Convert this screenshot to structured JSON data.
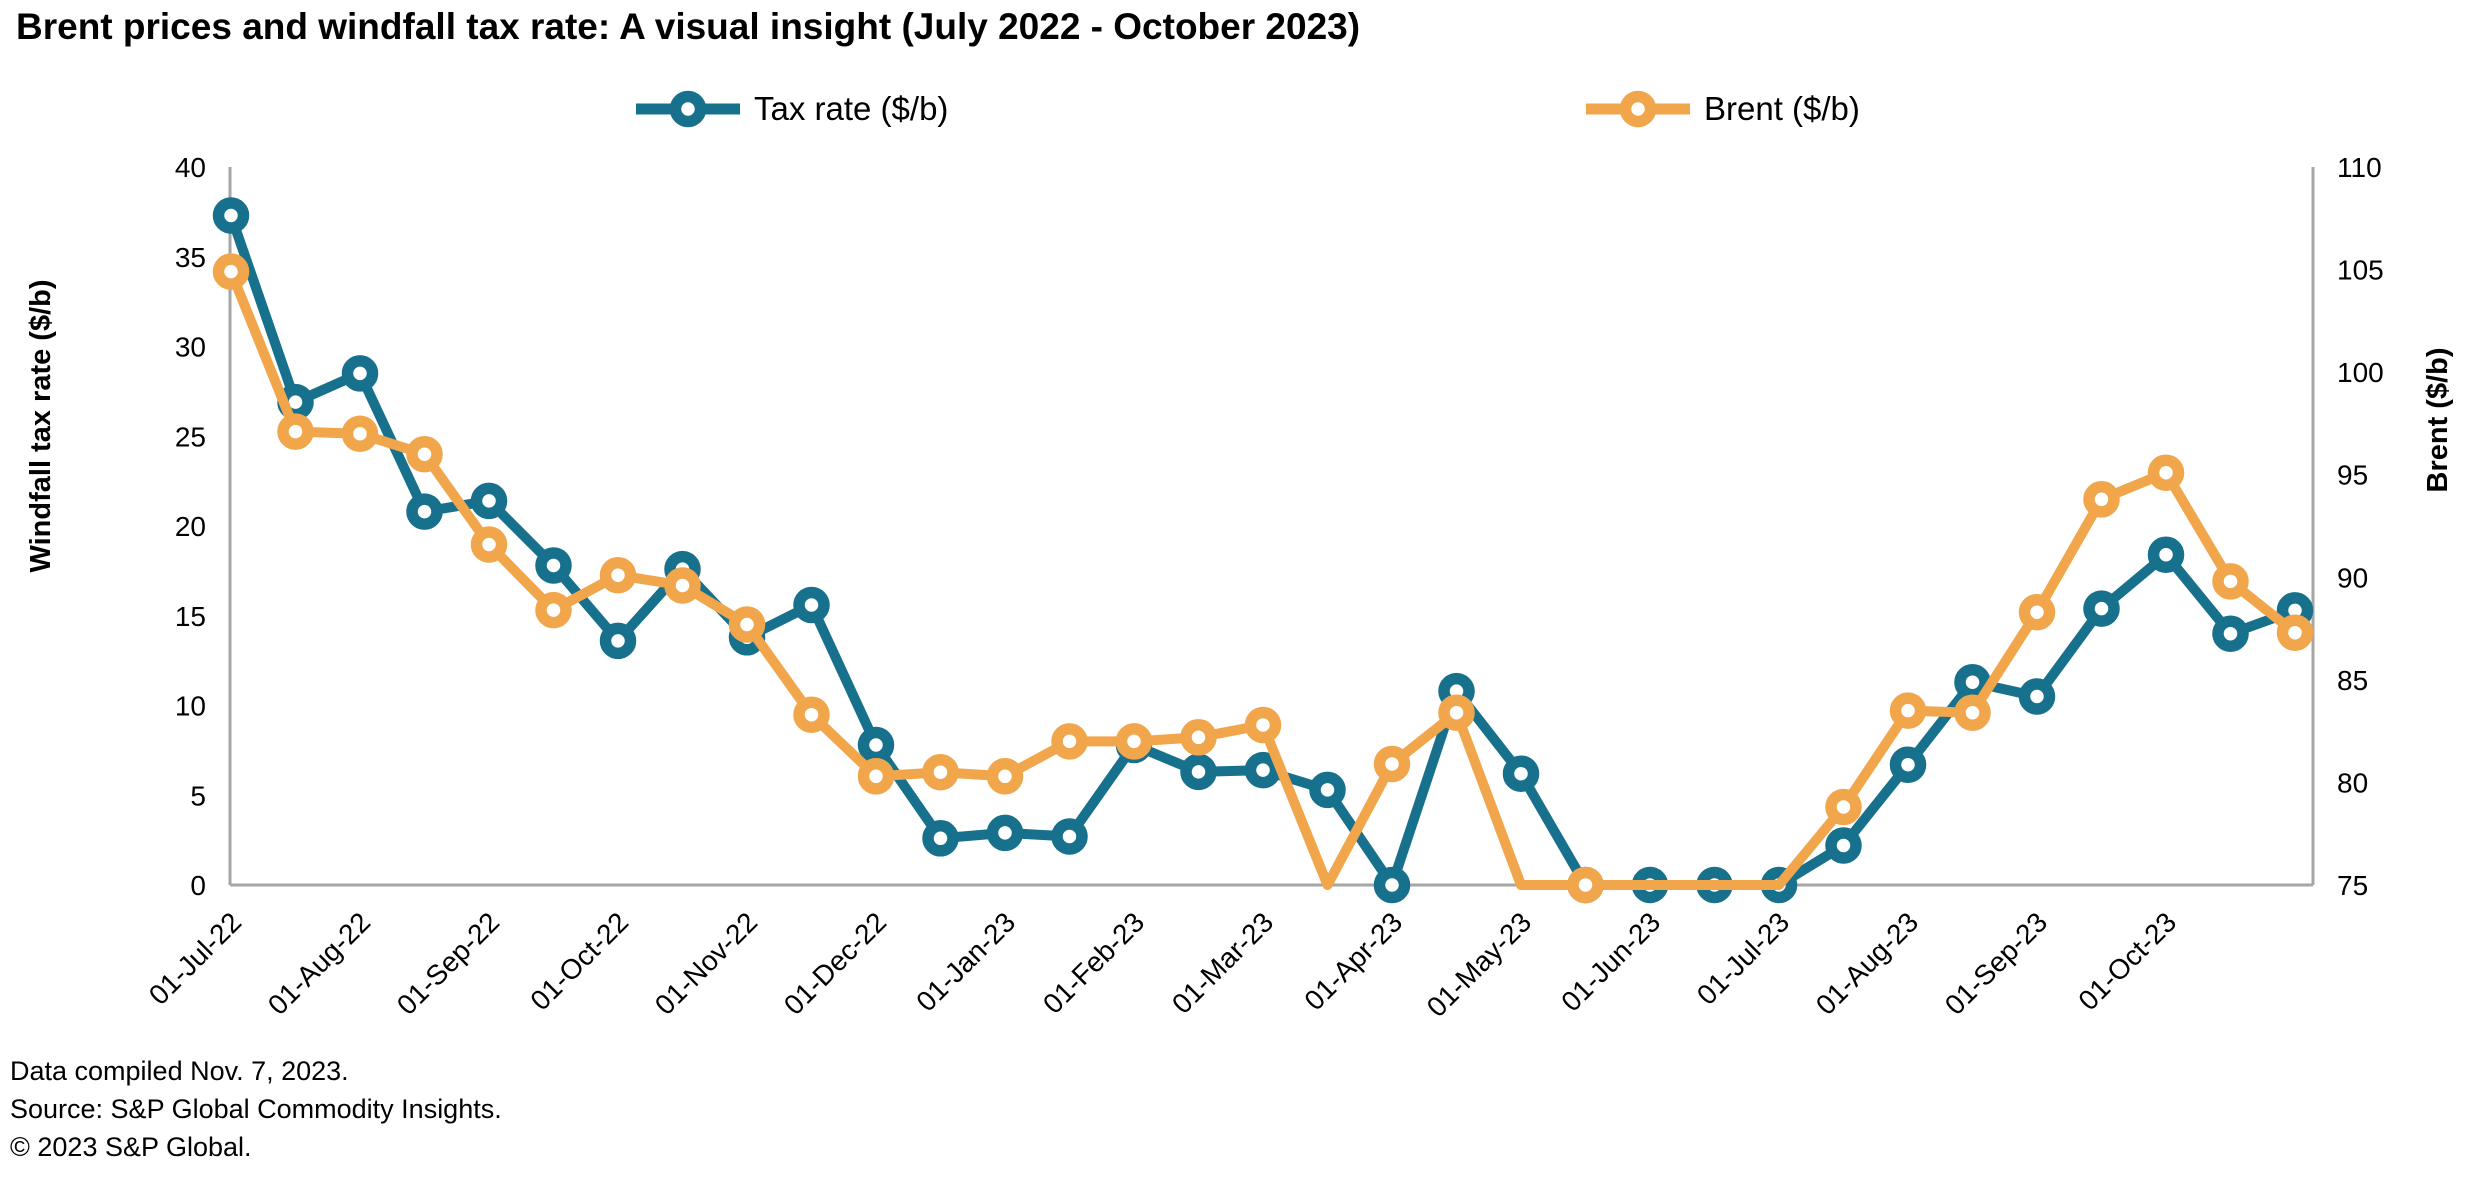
{
  "title": "Brent prices and windfall tax rate: A visual insight (July 2022 - October 2023)",
  "legend": [
    {
      "label": "Tax rate ($/b)",
      "color": "#17708C"
    },
    {
      "label": "Brent ($/b)",
      "color": "#F2A64B"
    }
  ],
  "left_axis": {
    "title": "Windfall tax rate ($/b)",
    "min": 0,
    "max": 40,
    "step": 5,
    "ticks": [
      0,
      5,
      10,
      15,
      20,
      25,
      30,
      35,
      40
    ]
  },
  "right_axis": {
    "title": "Brent ($/b)",
    "min": 75,
    "max": 110,
    "step": 5,
    "ticks": [
      75,
      80,
      85,
      90,
      95,
      100,
      105,
      110
    ]
  },
  "x_axis": {
    "labels": [
      "01-Jul-22",
      "01-Aug-22",
      "01-Sep-22",
      "01-Oct-22",
      "01-Nov-22",
      "01-Dec-22",
      "01-Jan-23",
      "01-Feb-23",
      "01-Mar-23",
      "01-Apr-23",
      "01-May-23",
      "01-Jun-23",
      "01-Jul-23",
      "01-Aug-23",
      "01-Sep-23",
      "01-Oct-23"
    ]
  },
  "footer": {
    "line1": "Data compiled Nov. 7, 2023.",
    "line2": "Source: S&P Global Commodity Insights.",
    "line3": "© 2023 S&P Global."
  },
  "colors": {
    "axis_line": "#A6A6A6",
    "text": "#000000",
    "tax": "#17708C",
    "brent": "#F2A64B",
    "marker_fill": "#FFFFFF"
  },
  "chart_data": {
    "type": "line",
    "subtype": "dual-axis biweekly time series with ring markers",
    "grid": "off",
    "legend_position": "top-center",
    "x": [
      "01-Jul-22",
      "16-Jul-22",
      "01-Aug-22",
      "16-Aug-22",
      "01-Sep-22",
      "16-Sep-22",
      "01-Oct-22",
      "16-Oct-22",
      "01-Nov-22",
      "16-Nov-22",
      "01-Dec-22",
      "16-Dec-22",
      "01-Jan-23",
      "16-Jan-23",
      "01-Feb-23",
      "16-Feb-23",
      "01-Mar-23",
      "16-Mar-23",
      "01-Apr-23",
      "16-Apr-23",
      "01-May-23",
      "16-May-23",
      "01-Jun-23",
      "16-Jun-23",
      "01-Jul-23",
      "16-Jul-23",
      "01-Aug-23",
      "16-Aug-23",
      "01-Sep-23",
      "16-Sep-23",
      "01-Oct-23",
      "16-Oct-23",
      "01-Nov-23"
    ],
    "series": [
      {
        "name": "Tax rate ($/b)",
        "axis": "left",
        "color": "#17708C",
        "ylim": [
          0,
          40
        ],
        "values": [
          37.3,
          26.9,
          28.5,
          20.8,
          21.4,
          17.8,
          13.6,
          17.6,
          13.8,
          15.6,
          7.8,
          2.6,
          2.9,
          2.7,
          7.8,
          6.3,
          6.4,
          5.3,
          0,
          10.8,
          6.2,
          0,
          0,
          0,
          0,
          2.2,
          6.7,
          11.3,
          10.5,
          15.4,
          18.4,
          14.0,
          15.3
        ],
        "hidden_markers": []
      },
      {
        "name": "Brent ($/b)",
        "axis": "right",
        "color": "#F2A64B",
        "ylim": [
          75,
          110
        ],
        "values": [
          104.9,
          97.1,
          97.0,
          96.0,
          91.6,
          88.4,
          90.1,
          89.6,
          87.7,
          83.3,
          80.3,
          80.5,
          80.3,
          82.0,
          82.0,
          82.2,
          82.8,
          75.0,
          80.9,
          83.4,
          75.0,
          75.0,
          75.0,
          75.0,
          75.0,
          78.8,
          83.5,
          83.4,
          88.3,
          93.8,
          95.1,
          89.8,
          87.3
        ],
        "hidden_markers": [
          17,
          20,
          22,
          23,
          24
        ],
        "note_clip": "values at 75 are clipped at the axis floor; hidden_markers indexes show no ring"
      }
    ],
    "title": "Brent prices and windfall tax rate: A visual insight (July 2022 - October 2023)",
    "xlabel": "",
    "ylabel_left": "Windfall tax rate ($/b)",
    "ylabel_right": "Brent ($/b)"
  }
}
